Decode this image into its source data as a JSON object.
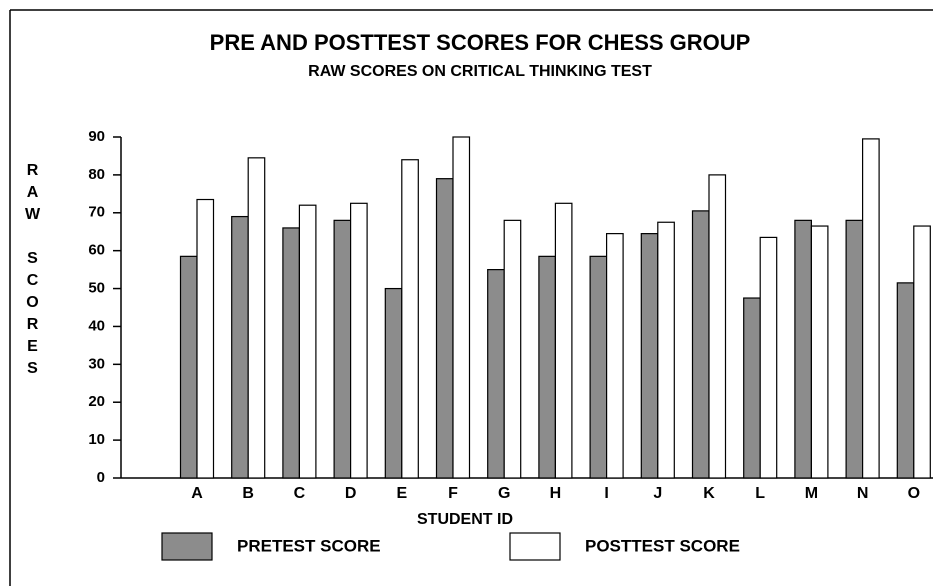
{
  "chart_data": {
    "type": "bar",
    "title": "PRE AND POSTTEST SCORES FOR CHESS GROUP",
    "subtitle": "RAW SCORES ON CRITICAL THINKING TEST",
    "x_label": "STUDENT ID",
    "y_label": "RAW SCORES",
    "categories": [
      "A",
      "B",
      "C",
      "D",
      "E",
      "F",
      "G",
      "H",
      "I",
      "J",
      "K",
      "L",
      "M",
      "N",
      "O"
    ],
    "series": [
      {
        "name": "PRETEST SCORE",
        "color": "#8c8c8c",
        "values": [
          58.5,
          69,
          66,
          68,
          50,
          79,
          55,
          58.5,
          58.5,
          64.5,
          70.5,
          47.5,
          68,
          68,
          51.5
        ]
      },
      {
        "name": "POSTTEST SCORE",
        "color": "#ffffff",
        "values": [
          73.5,
          84.5,
          72,
          72.5,
          84,
          90,
          68,
          72.5,
          64.5,
          67.5,
          80,
          63.5,
          66.5,
          89.5,
          66.5
        ]
      }
    ],
    "ylim": [
      0,
      90
    ],
    "yticks": [
      0,
      10,
      20,
      30,
      40,
      50,
      60,
      70,
      80,
      90
    ],
    "grid": false
  }
}
